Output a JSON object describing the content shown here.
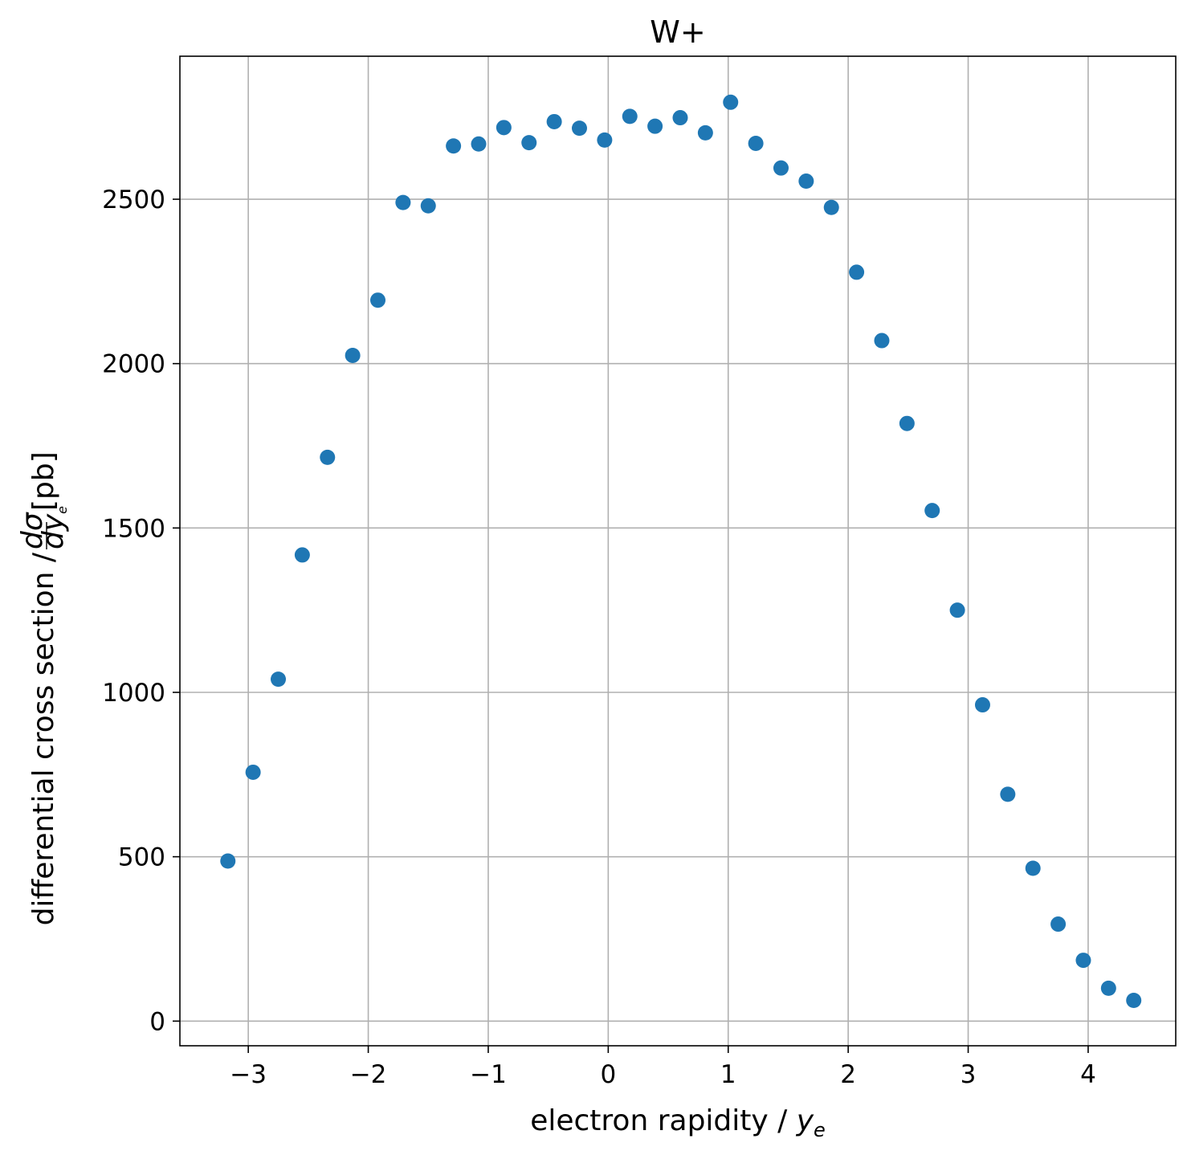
{
  "chart_data": {
    "type": "scatter",
    "title": "W+",
    "xlabel": "electron rapidity / ",
    "xlabel_var": "y",
    "xlabel_var_sub": "e",
    "ylabel": "differential cross section  / ",
    "ylabel_frac_num": "dσ",
    "ylabel_frac_den": "dy",
    "ylabel_frac_den_sub": "e",
    "ylabel_unit": "[pb]",
    "xlim": [
      -3.57,
      4.73
    ],
    "ylim": [
      -75,
      2935
    ],
    "xticks": [
      -3,
      -2,
      -1,
      0,
      1,
      2,
      3,
      4
    ],
    "xtick_labels": [
      "−3",
      "−2",
      "−1",
      "0",
      "1",
      "2",
      "3",
      "4"
    ],
    "yticks": [
      0,
      500,
      1000,
      1500,
      2000,
      2500
    ],
    "ytick_labels": [
      "0",
      "500",
      "1000",
      "1500",
      "2000",
      "2500"
    ],
    "grid": true,
    "marker_color": "#1f77b4",
    "series": [
      {
        "name": "W+",
        "x": [
          -3.17,
          -2.96,
          -2.75,
          -2.55,
          -2.34,
          -2.13,
          -1.92,
          -1.71,
          -1.5,
          -1.29,
          -1.08,
          -0.87,
          -0.66,
          -0.45,
          -0.24,
          -0.03,
          0.18,
          0.39,
          0.6,
          0.81,
          1.02,
          1.23,
          1.44,
          1.65,
          1.86,
          2.07,
          2.28,
          2.49,
          2.7,
          2.91,
          3.12,
          3.33,
          3.54,
          3.75,
          3.96,
          4.17,
          4.38
        ],
        "y": [
          487,
          757,
          1040,
          1418,
          1715,
          2025,
          2193,
          2490,
          2480,
          2662,
          2668,
          2718,
          2672,
          2736,
          2716,
          2680,
          2752,
          2722,
          2748,
          2702,
          2795,
          2670,
          2595,
          2555,
          2475,
          2278,
          2070,
          1818,
          1553,
          1250,
          962,
          690,
          465,
          295,
          185,
          100,
          63
        ]
      }
    ]
  }
}
